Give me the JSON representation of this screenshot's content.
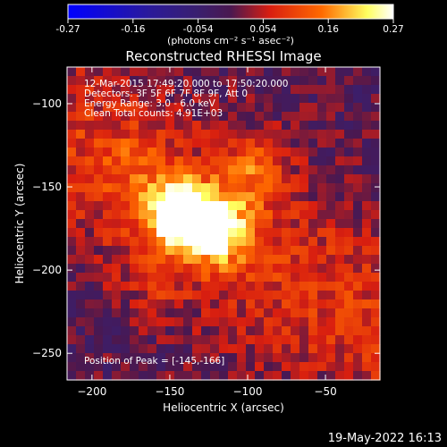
{
  "chart_data": {
    "type": "heatmap",
    "title": "Reconstructed RHESSI Image",
    "xlabel": "Heliocentric X (arcsec)",
    "ylabel": "Heliocentric Y (arcsec)",
    "xlim": [
      -216,
      -15
    ],
    "ylim": [
      -266,
      -78
    ],
    "xticks": [
      -200,
      -150,
      -100,
      -50
    ],
    "yticks": [
      -250,
      -200,
      -150,
      -100
    ],
    "colorbar": {
      "vmin": -0.27,
      "vmax": 0.27,
      "ticks": [
        "-0.27",
        "-0.16",
        "-0.054",
        "0.054",
        "0.16",
        "0.27"
      ],
      "label": "(photons cm⁻² s⁻¹ asec⁻²)",
      "colors": [
        "#0000ff",
        "#2a1a9a",
        "#3a1f6e",
        "#4a1850",
        "#d81e10",
        "#ff6a00",
        "#ffff60",
        "#ffffff"
      ]
    },
    "info_lines": [
      "12-Mar-2015 17:49:20.000 to 17:50:20.000",
      "Detectors: 3F 5F 6F 7F 8F 9F, Att 0",
      "Energy Range: 3.0 - 6.0 keV",
      "Clean    Total counts: 4.91E+03"
    ],
    "peak_label": "Position of Peak = [-145,-166]",
    "sources": [
      {
        "x": -145,
        "y": -166,
        "peak": 0.27
      },
      {
        "x": -120,
        "y": -175,
        "peak": 0.24
      },
      {
        "x": -95,
        "y": -140,
        "peak": 0.1
      },
      {
        "x": -175,
        "y": -135,
        "peak": 0.05
      },
      {
        "x": -160,
        "y": -205,
        "peak": 0.05
      }
    ]
  },
  "footer_date": "19-May-2022 16:13"
}
